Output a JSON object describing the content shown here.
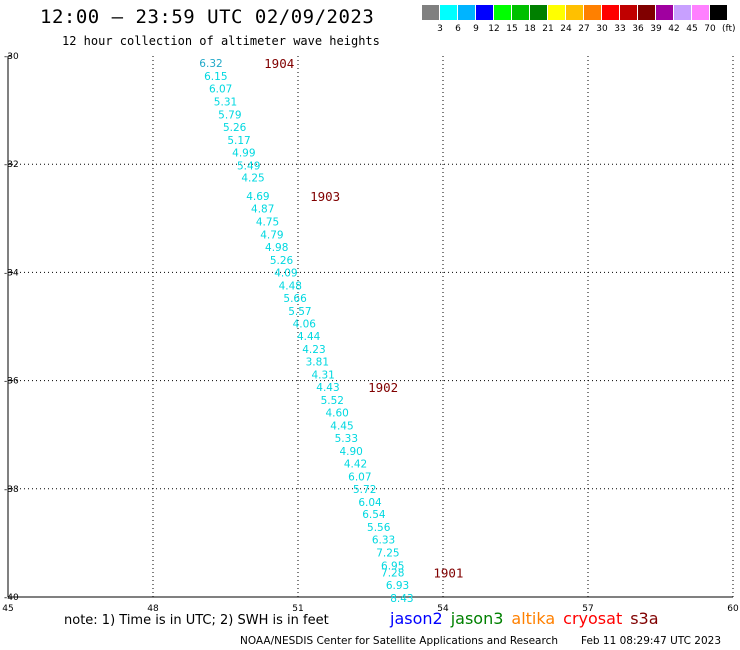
{
  "header": {
    "title": "12:00 – 23:59 UTC 02/09/2023",
    "subtitle": "12 hour collection of altimeter wave heights"
  },
  "color_scale": {
    "unit": "(ft)",
    "colors": [
      "#808080",
      "#00ffff",
      "#00b4ff",
      "#0000ff",
      "#00ff00",
      "#00c000",
      "#008000",
      "#ffff00",
      "#ffc000",
      "#ff8000",
      "#ff0000",
      "#c00000",
      "#800000",
      "#a000a0",
      "#c8a0ff",
      "#ff80ff",
      "#000000"
    ],
    "labels": [
      "3",
      "6",
      "9",
      "12",
      "15",
      "18",
      "21",
      "24",
      "27",
      "30",
      "33",
      "36",
      "39",
      "42",
      "45",
      "70"
    ]
  },
  "map": {
    "lat_ticks": [
      "-30",
      "-32",
      "-34",
      "-36",
      "-38",
      "-40"
    ],
    "lon_ticks": [
      "45",
      "48",
      "51",
      "54",
      "57",
      "60"
    ],
    "swh_color": "#00d8e0",
    "swh_color_top": "#20a8c8",
    "pass_color": "#800000",
    "swh_values": [
      {
        "lat": -30.13,
        "lon": 49.2,
        "v": "6.32"
      },
      {
        "lat": -30.37,
        "lon": 49.3,
        "v": "6.15"
      },
      {
        "lat": -30.6,
        "lon": 49.4,
        "v": "6.07"
      },
      {
        "lat": -30.84,
        "lon": 49.5,
        "v": "5.31"
      },
      {
        "lat": -31.08,
        "lon": 49.59,
        "v": "5.79"
      },
      {
        "lat": -31.31,
        "lon": 49.69,
        "v": "5.26"
      },
      {
        "lat": -31.55,
        "lon": 49.78,
        "v": "5.17"
      },
      {
        "lat": -31.78,
        "lon": 49.88,
        "v": "4.99"
      },
      {
        "lat": -32.02,
        "lon": 49.98,
        "v": "5.49"
      },
      {
        "lat": -32.25,
        "lon": 50.07,
        "v": "4.25"
      },
      {
        "lat": -32.59,
        "lon": 50.17,
        "v": "4.69"
      },
      {
        "lat": -32.82,
        "lon": 50.27,
        "v": "4.87"
      },
      {
        "lat": -33.06,
        "lon": 50.37,
        "v": "4.75"
      },
      {
        "lat": -33.3,
        "lon": 50.46,
        "v": "4.79"
      },
      {
        "lat": -33.53,
        "lon": 50.56,
        "v": "4.98"
      },
      {
        "lat": -33.77,
        "lon": 50.66,
        "v": "5.26"
      },
      {
        "lat": -34.0,
        "lon": 50.75,
        "v": "4.09"
      },
      {
        "lat": -34.24,
        "lon": 50.84,
        "v": "4.48"
      },
      {
        "lat": -34.47,
        "lon": 50.94,
        "v": "5.66"
      },
      {
        "lat": -34.71,
        "lon": 51.04,
        "v": "5.57"
      },
      {
        "lat": -34.94,
        "lon": 51.13,
        "v": "4.06"
      },
      {
        "lat": -35.18,
        "lon": 51.22,
        "v": "4.44"
      },
      {
        "lat": -35.42,
        "lon": 51.33,
        "v": "4.23"
      },
      {
        "lat": -35.65,
        "lon": 51.4,
        "v": "3.81"
      },
      {
        "lat": -35.89,
        "lon": 51.52,
        "v": "4.31"
      },
      {
        "lat": -36.12,
        "lon": 51.62,
        "v": "4.43"
      },
      {
        "lat": -36.36,
        "lon": 51.71,
        "v": "5.52"
      },
      {
        "lat": -36.59,
        "lon": 51.81,
        "v": "4.60"
      },
      {
        "lat": -36.83,
        "lon": 51.91,
        "v": "4.45"
      },
      {
        "lat": -37.06,
        "lon": 52.0,
        "v": "5.33"
      },
      {
        "lat": -37.3,
        "lon": 52.1,
        "v": "4.90"
      },
      {
        "lat": -37.53,
        "lon": 52.19,
        "v": "4.42"
      },
      {
        "lat": -37.77,
        "lon": 52.28,
        "v": "6.07"
      },
      {
        "lat": -38.0,
        "lon": 52.38,
        "v": "5.72"
      },
      {
        "lat": -38.24,
        "lon": 52.49,
        "v": "6.04"
      },
      {
        "lat": -38.47,
        "lon": 52.57,
        "v": "6.54"
      },
      {
        "lat": -38.71,
        "lon": 52.67,
        "v": "5.56"
      },
      {
        "lat": -38.94,
        "lon": 52.77,
        "v": "6.33"
      },
      {
        "lat": -39.18,
        "lon": 52.86,
        "v": "7.25"
      },
      {
        "lat": -39.42,
        "lon": 52.96,
        "v": "6.95"
      },
      {
        "lat": -39.55,
        "lon": 52.96,
        "v": "7.28"
      },
      {
        "lat": -39.78,
        "lon": 53.06,
        "v": "6.93"
      },
      {
        "lat": -40.02,
        "lon": 53.15,
        "v": "8.43"
      }
    ],
    "pass_labels": [
      {
        "lat": -30.13,
        "lon": 50.3,
        "v": "1904"
      },
      {
        "lat": -32.59,
        "lon": 51.25,
        "v": "1903"
      },
      {
        "lat": -36.12,
        "lon": 52.45,
        "v": "1902"
      },
      {
        "lat": -39.55,
        "lon": 53.8,
        "v": "1901"
      }
    ]
  },
  "note": "note: 1) Time is in UTC; 2) SWH is in feet",
  "satellites": [
    {
      "name": "jason2",
      "color": "#0000ff"
    },
    {
      "name": "jason3",
      "color": "#008000"
    },
    {
      "name": "altika",
      "color": "#ff8000"
    },
    {
      "name": "cryosat",
      "color": "#ff0000"
    },
    {
      "name": "s3a",
      "color": "#800000"
    }
  ],
  "footer": {
    "credit": "NOAA/NESDIS Center for Satellite Applications and Research",
    "timestamp": "Feb 11 08:29:47 UTC 2023"
  }
}
